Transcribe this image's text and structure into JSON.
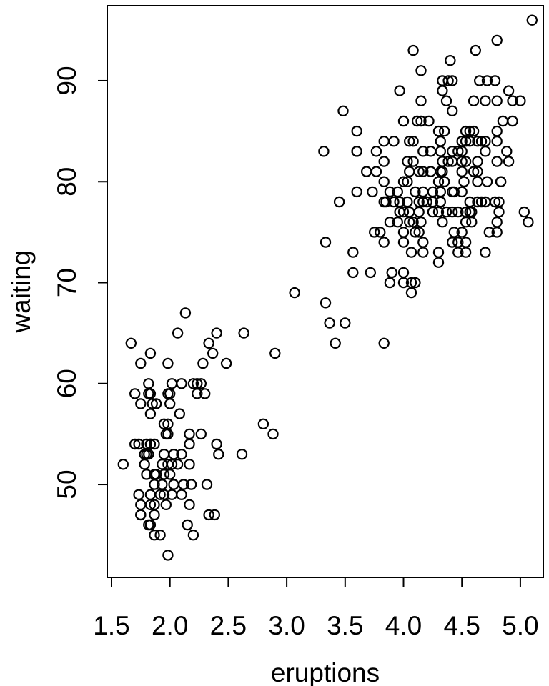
{
  "chart_data": {
    "type": "scatter",
    "title": "",
    "xlabel": "eruptions",
    "ylabel": "waiting",
    "x_ticks": [
      "1.5",
      "2.0",
      "2.5",
      "3.0",
      "3.5",
      "4.0",
      "4.5",
      "5.0"
    ],
    "x_tick_values": [
      1.5,
      2.0,
      2.5,
      3.0,
      3.5,
      4.0,
      4.5,
      5.0
    ],
    "y_ticks": [
      "50",
      "60",
      "70",
      "80",
      "90"
    ],
    "y_tick_values": [
      50,
      60,
      70,
      80,
      90
    ],
    "xlim": [
      1.4633,
      5.1963
    ],
    "ylim": [
      40.8,
      97.43
    ],
    "grid": false,
    "legend": "none",
    "marker": "open-circle",
    "colors": {
      "marker_stroke": "#000000",
      "axis": "#000000",
      "background": "#ffffff"
    },
    "points": [
      [
        3.6,
        79
      ],
      [
        1.8,
        54
      ],
      [
        3.333,
        74
      ],
      [
        2.283,
        62
      ],
      [
        4.533,
        85
      ],
      [
        2.883,
        55
      ],
      [
        4.7,
        88
      ],
      [
        3.6,
        85
      ],
      [
        1.95,
        51
      ],
      [
        4.35,
        85
      ],
      [
        1.833,
        54
      ],
      [
        3.917,
        84
      ],
      [
        4.2,
        78
      ],
      [
        1.75,
        47
      ],
      [
        4.7,
        83
      ],
      [
        2.167,
        52
      ],
      [
        1.75,
        62
      ],
      [
        4.8,
        84
      ],
      [
        1.6,
        52
      ],
      [
        4.25,
        79
      ],
      [
        1.8,
        51
      ],
      [
        1.75,
        47
      ],
      [
        3.45,
        78
      ],
      [
        3.067,
        69
      ],
      [
        4.533,
        74
      ],
      [
        3.6,
        83
      ],
      [
        1.967,
        55
      ],
      [
        4.083,
        76
      ],
      [
        3.85,
        78
      ],
      [
        4.433,
        79
      ],
      [
        4.3,
        73
      ],
      [
        4.467,
        77
      ],
      [
        3.367,
        66
      ],
      [
        4.033,
        80
      ],
      [
        3.833,
        74
      ],
      [
        2.017,
        52
      ],
      [
        1.867,
        48
      ],
      [
        4.833,
        80
      ],
      [
        1.833,
        59
      ],
      [
        4.783,
        90
      ],
      [
        4.35,
        80
      ],
      [
        1.883,
        58
      ],
      [
        4.567,
        84
      ],
      [
        1.75,
        58
      ],
      [
        4.533,
        73
      ],
      [
        3.317,
        83
      ],
      [
        3.833,
        64
      ],
      [
        2.1,
        53
      ],
      [
        4.633,
        82
      ],
      [
        2.0,
        59
      ],
      [
        4.8,
        75
      ],
      [
        4.716,
        90
      ],
      [
        1.833,
        54
      ],
      [
        4.833,
        80
      ],
      [
        1.733,
        54
      ],
      [
        4.883,
        83
      ],
      [
        3.717,
        71
      ],
      [
        1.667,
        64
      ],
      [
        4.567,
        77
      ],
      [
        4.317,
        81
      ],
      [
        2.233,
        59
      ],
      [
        4.5,
        84
      ],
      [
        1.75,
        48
      ],
      [
        4.8,
        82
      ],
      [
        1.817,
        60
      ],
      [
        4.4,
        92
      ],
      [
        4.167,
        78
      ],
      [
        4.7,
        78
      ],
      [
        2.067,
        65
      ],
      [
        4.7,
        73
      ],
      [
        4.033,
        82
      ],
      [
        1.95,
        56
      ],
      [
        4.5,
        79
      ],
      [
        4.0,
        71
      ],
      [
        1.983,
        62
      ],
      [
        5.067,
        76
      ],
      [
        2.017,
        60
      ],
      [
        4.567,
        78
      ],
      [
        3.883,
        76
      ],
      [
        3.6,
        83
      ],
      [
        4.133,
        75
      ],
      [
        4.333,
        82
      ],
      [
        4.1,
        70
      ],
      [
        2.633,
        65
      ],
      [
        4.067,
        73
      ],
      [
        4.933,
        88
      ],
      [
        3.95,
        76
      ],
      [
        4.517,
        80
      ],
      [
        2.167,
        48
      ],
      [
        4.0,
        86
      ],
      [
        2.2,
        60
      ],
      [
        4.333,
        90
      ],
      [
        1.867,
        50
      ],
      [
        4.817,
        78
      ],
      [
        1.833,
        63
      ],
      [
        4.3,
        72
      ],
      [
        4.667,
        84
      ],
      [
        3.75,
        75
      ],
      [
        1.867,
        51
      ],
      [
        4.9,
        82
      ],
      [
        2.483,
        62
      ],
      [
        4.367,
        88
      ],
      [
        2.1,
        49
      ],
      [
        4.5,
        83
      ],
      [
        4.05,
        81
      ],
      [
        1.867,
        47
      ],
      [
        4.7,
        84
      ],
      [
        1.783,
        52
      ],
      [
        4.85,
        86
      ],
      [
        3.683,
        81
      ],
      [
        4.733,
        75
      ],
      [
        2.3,
        59
      ],
      [
        4.9,
        89
      ],
      [
        4.417,
        79
      ],
      [
        1.7,
        59
      ],
      [
        4.633,
        81
      ],
      [
        2.317,
        50
      ],
      [
        4.6,
        85
      ],
      [
        1.817,
        59
      ],
      [
        4.417,
        87
      ],
      [
        2.617,
        53
      ],
      [
        4.067,
        69
      ],
      [
        4.25,
        77
      ],
      [
        1.983,
        56
      ],
      [
        4.6,
        88
      ],
      [
        3.767,
        81
      ],
      [
        1.917,
        45
      ],
      [
        4.5,
        82
      ],
      [
        2.267,
        55
      ],
      [
        4.65,
        90
      ],
      [
        1.867,
        45
      ],
      [
        4.167,
        83
      ],
      [
        2.8,
        56
      ],
      [
        4.333,
        89
      ],
      [
        1.833,
        46
      ],
      [
        4.383,
        82
      ],
      [
        1.883,
        51
      ],
      [
        4.933,
        86
      ],
      [
        2.033,
        53
      ],
      [
        3.733,
        79
      ],
      [
        4.233,
        81
      ],
      [
        2.233,
        60
      ],
      [
        4.533,
        82
      ],
      [
        4.817,
        77
      ],
      [
        4.333,
        76
      ],
      [
        1.983,
        59
      ],
      [
        4.633,
        80
      ],
      [
        2.017,
        49
      ],
      [
        5.1,
        96
      ],
      [
        1.8,
        53
      ],
      [
        5.033,
        77
      ],
      [
        4.0,
        77
      ],
      [
        2.4,
        65
      ],
      [
        4.6,
        81
      ],
      [
        3.567,
        71
      ],
      [
        4.0,
        70
      ],
      [
        4.5,
        81
      ],
      [
        4.083,
        93
      ],
      [
        1.817,
        53
      ],
      [
        3.967,
        89
      ],
      [
        2.2,
        45
      ],
      [
        4.15,
        86
      ],
      [
        2.0,
        58
      ],
      [
        3.833,
        78
      ],
      [
        3.5,
        66
      ],
      [
        4.583,
        76
      ],
      [
        2.367,
        63
      ],
      [
        5.0,
        88
      ],
      [
        1.933,
        52
      ],
      [
        4.617,
        93
      ],
      [
        1.917,
        49
      ],
      [
        2.083,
        57
      ],
      [
        4.583,
        77
      ],
      [
        3.333,
        68
      ],
      [
        4.167,
        81
      ],
      [
        4.333,
        81
      ],
      [
        4.167,
        73
      ],
      [
        2.183,
        50
      ],
      [
        4.8,
        85
      ],
      [
        4.8,
        88
      ],
      [
        2.0,
        51
      ],
      [
        4.716,
        80
      ],
      [
        1.833,
        49
      ],
      [
        2.133,
        67
      ],
      [
        2.9,
        63
      ],
      [
        3.567,
        73
      ],
      [
        3.9,
        71
      ],
      [
        3.883,
        70
      ],
      [
        4.067,
        70
      ],
      [
        3.417,
        64
      ],
      [
        4.15,
        91
      ],
      [
        4.383,
        90
      ],
      [
        4.8,
        94
      ],
      [
        3.483,
        87
      ],
      [
        4.117,
        86
      ],
      [
        4.217,
        86
      ],
      [
        4.567,
        85
      ],
      [
        4.633,
        84
      ],
      [
        4.05,
        84
      ],
      [
        4.083,
        84
      ],
      [
        3.833,
        84
      ],
      [
        3.767,
        83
      ],
      [
        3.833,
        82
      ],
      [
        4.083,
        82
      ],
      [
        4.233,
        83
      ],
      [
        4.317,
        83
      ],
      [
        3.833,
        80
      ],
      [
        4.3,
        80
      ],
      [
        3.95,
        79
      ],
      [
        4.1,
        79
      ],
      [
        3.967,
        78
      ],
      [
        4.033,
        78
      ],
      [
        4.133,
        78
      ],
      [
        4.25,
        78
      ],
      [
        4.317,
        78
      ],
      [
        3.967,
        77
      ],
      [
        4.05,
        77
      ],
      [
        4.133,
        77
      ],
      [
        4.367,
        77
      ],
      [
        4.417,
        77
      ],
      [
        4.05,
        76
      ],
      [
        4.15,
        76
      ],
      [
        3.8,
        75
      ],
      [
        4.1,
        75
      ],
      [
        4.167,
        74
      ],
      [
        4.533,
        84
      ],
      [
        4.417,
        83
      ],
      [
        4.467,
        83
      ],
      [
        4.417,
        82
      ],
      [
        4.633,
        78
      ],
      [
        4.667,
        78
      ],
      [
        4.783,
        78
      ],
      [
        4.533,
        77
      ],
      [
        4.533,
        76
      ],
      [
        4.8,
        76
      ],
      [
        4.5,
        75
      ],
      [
        4.417,
        74
      ],
      [
        4.467,
        73
      ],
      [
        4.3,
        77
      ],
      [
        4.317,
        84
      ],
      [
        4.433,
        75
      ],
      [
        2.333,
        64
      ],
      [
        2.1,
        60
      ],
      [
        2.267,
        60
      ],
      [
        1.85,
        58
      ],
      [
        1.833,
        57
      ],
      [
        1.983,
        55
      ],
      [
        2.167,
        55
      ],
      [
        2.167,
        54
      ],
      [
        2.4,
        54
      ],
      [
        2.417,
        53
      ],
      [
        1.783,
        53
      ],
      [
        1.7,
        54
      ],
      [
        1.867,
        54
      ],
      [
        1.983,
        52
      ],
      [
        2.067,
        52
      ],
      [
        1.95,
        53
      ],
      [
        1.933,
        50
      ],
      [
        2.033,
        50
      ],
      [
        2.117,
        50
      ],
      [
        1.733,
        49
      ],
      [
        1.833,
        48
      ],
      [
        1.95,
        49
      ],
      [
        1.967,
        48
      ],
      [
        2.333,
        47
      ],
      [
        2.383,
        47
      ],
      [
        1.983,
        43
      ],
      [
        2.15,
        46
      ],
      [
        4.417,
        90
      ],
      [
        1.817,
        46
      ],
      [
        4.467,
        74
      ],
      [
        4.133,
        81
      ],
      [
        4.0,
        80
      ],
      [
        3.883,
        79
      ],
      [
        4.167,
        79
      ],
      [
        4.317,
        79
      ],
      [
        3.917,
        78
      ],
      [
        4.0,
        75
      ],
      [
        4.0,
        74
      ],
      [
        4.15,
        88
      ],
      [
        4.3,
        85
      ]
    ]
  }
}
